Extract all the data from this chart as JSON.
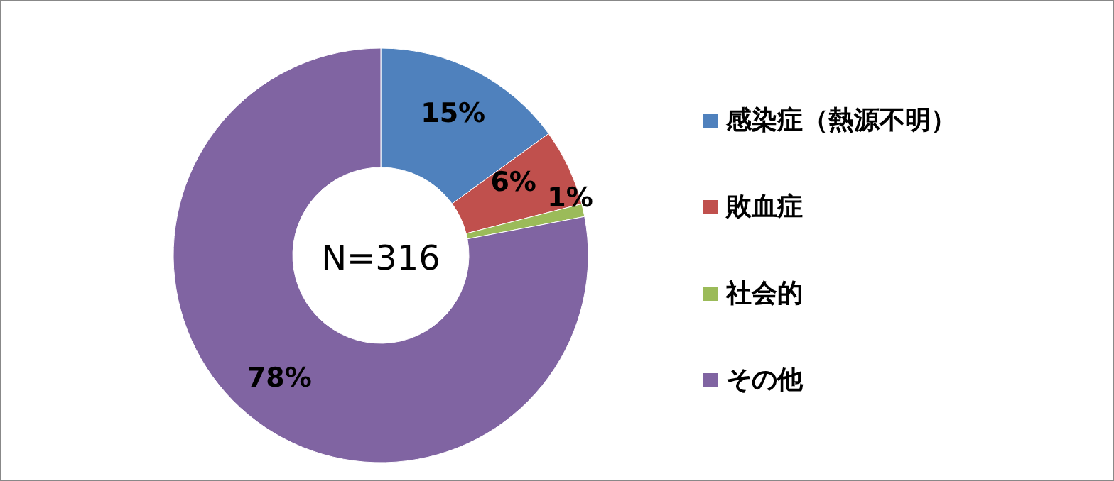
{
  "chart_data": {
    "type": "donut",
    "categories": [
      "感染症（熱源不明）",
      "敗血症",
      "社会的",
      "その他"
    ],
    "values": [
      15,
      6,
      1,
      78
    ],
    "colors": [
      "#4f81bd",
      "#c0504d",
      "#9bbb59",
      "#8064a2"
    ],
    "value_labels": [
      "15%",
      "6%",
      "1%",
      "78%"
    ],
    "annotations": [
      "N=316"
    ],
    "legend": "right"
  }
}
